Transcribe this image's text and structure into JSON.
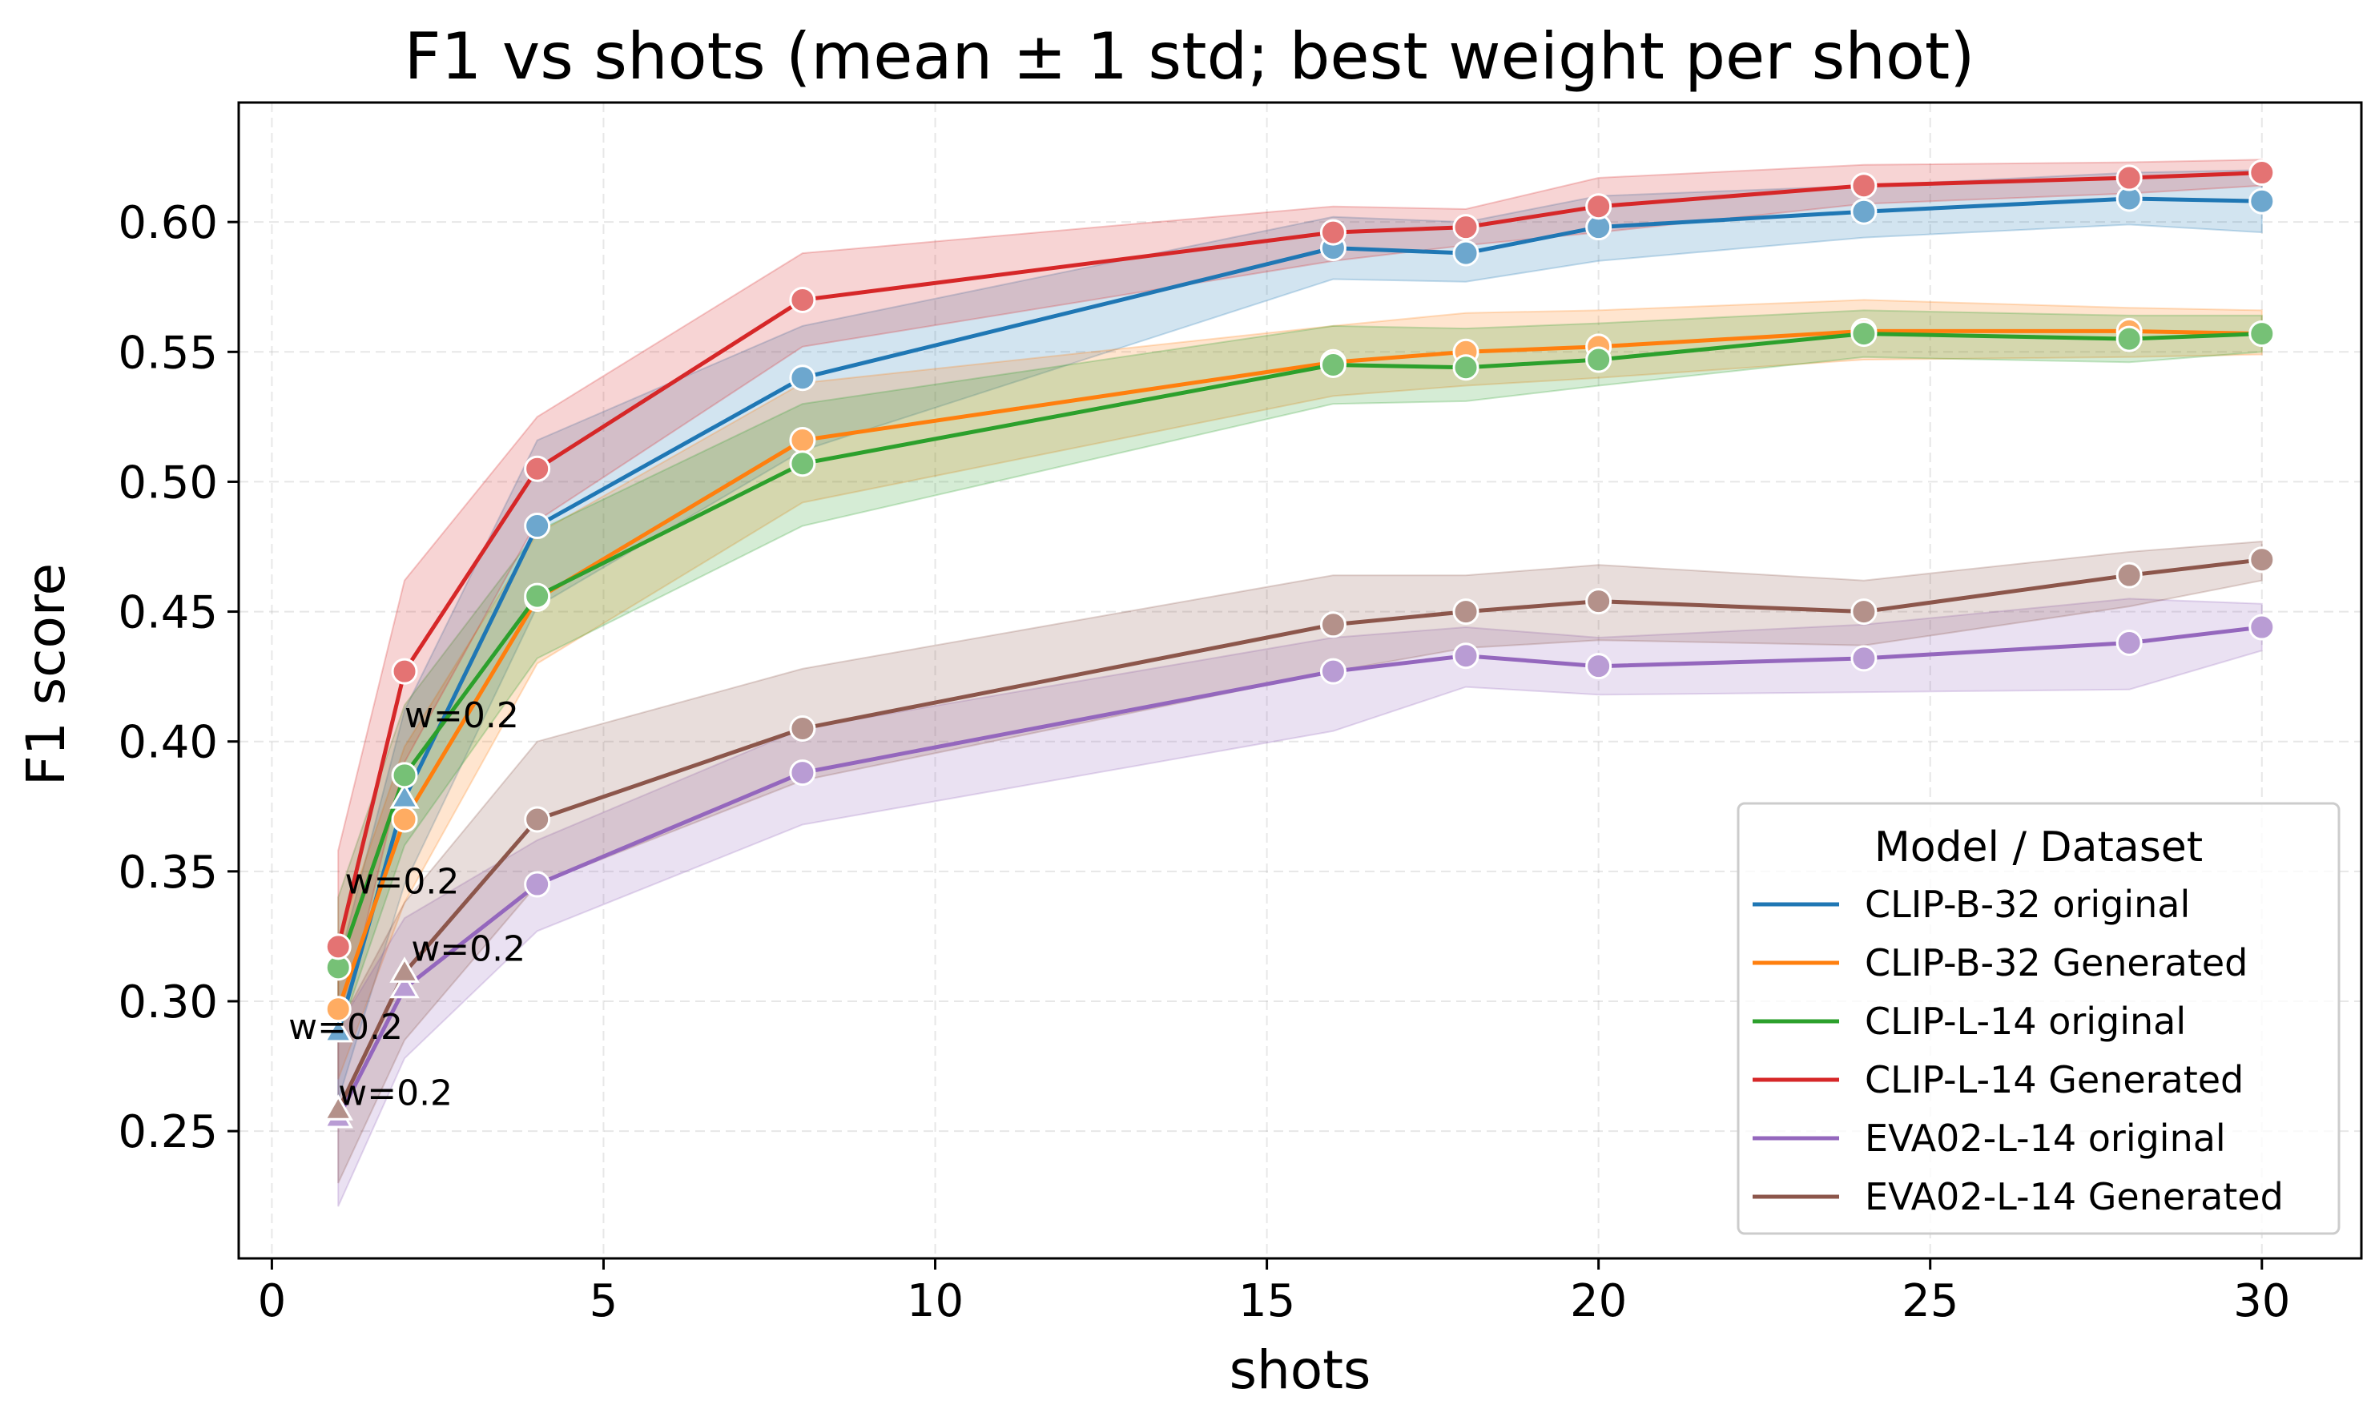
{
  "chart_data": {
    "type": "line",
    "title": "F1 vs shots (mean ± 1 std; best weight per shot)",
    "xlabel": "shots",
    "ylabel": "F1 score",
    "xlim": [
      -0.5,
      31.5
    ],
    "ylim": [
      0.201,
      0.646
    ],
    "xticks": [
      0,
      5,
      10,
      15,
      20,
      25,
      30
    ],
    "yticks": [
      0.25,
      0.3,
      0.35,
      0.4,
      0.45,
      0.5,
      0.55,
      0.6
    ],
    "ytick_labels": [
      "0.25",
      "0.30",
      "0.35",
      "0.40",
      "0.45",
      "0.50",
      "0.55",
      "0.60"
    ],
    "grid": true,
    "legend": {
      "title": "Model / Dataset",
      "placement": "center-right"
    },
    "x": [
      1,
      2,
      4,
      8,
      16,
      18,
      20,
      24,
      28,
      30
    ],
    "series": [
      {
        "name": "CLIP-B-32 original",
        "color": "#1f77b4",
        "values": [
          0.288,
          0.378,
          0.483,
          0.54,
          0.59,
          0.588,
          0.598,
          0.604,
          0.609,
          0.608
        ],
        "lower": [
          0.262,
          0.345,
          0.452,
          0.512,
          0.578,
          0.577,
          0.585,
          0.594,
          0.599,
          0.596
        ],
        "upper": [
          0.314,
          0.412,
          0.516,
          0.56,
          0.602,
          0.6,
          0.61,
          0.614,
          0.619,
          0.62
        ],
        "markers": [
          "triangle",
          "triangle",
          "circle",
          "circle",
          "circle",
          "circle",
          "circle",
          "circle",
          "circle",
          "circle"
        ]
      },
      {
        "name": "CLIP-B-32 Generated",
        "color": "#ff7f0e",
        "values": [
          0.297,
          0.37,
          0.455,
          0.516,
          0.546,
          0.55,
          0.552,
          0.558,
          0.558,
          0.557
        ],
        "lower": [
          0.27,
          0.338,
          0.43,
          0.492,
          0.533,
          0.537,
          0.54,
          0.547,
          0.548,
          0.549
        ],
        "upper": [
          0.324,
          0.398,
          0.48,
          0.538,
          0.56,
          0.565,
          0.566,
          0.57,
          0.567,
          0.566
        ],
        "markers": [
          "circle",
          "circle",
          "circle",
          "circle",
          "circle",
          "circle",
          "circle",
          "circle",
          "circle",
          "circle"
        ]
      },
      {
        "name": "CLIP-L-14 original",
        "color": "#2ca02c",
        "values": [
          0.313,
          0.387,
          0.456,
          0.507,
          0.545,
          0.544,
          0.547,
          0.557,
          0.555,
          0.557
        ],
        "lower": [
          0.286,
          0.36,
          0.432,
          0.483,
          0.53,
          0.531,
          0.537,
          0.548,
          0.546,
          0.55
        ],
        "upper": [
          0.34,
          0.414,
          0.481,
          0.53,
          0.56,
          0.559,
          0.561,
          0.566,
          0.564,
          0.564
        ],
        "markers": [
          "circle",
          "circle",
          "circle",
          "circle",
          "circle",
          "circle",
          "circle",
          "circle",
          "circle",
          "circle"
        ]
      },
      {
        "name": "CLIP-L-14 Generated",
        "color": "#d62728",
        "values": [
          0.321,
          0.427,
          0.505,
          0.57,
          0.596,
          0.598,
          0.606,
          0.614,
          0.617,
          0.619
        ],
        "lower": [
          0.285,
          0.392,
          0.485,
          0.552,
          0.585,
          0.591,
          0.596,
          0.607,
          0.611,
          0.614
        ],
        "upper": [
          0.358,
          0.462,
          0.525,
          0.588,
          0.606,
          0.605,
          0.617,
          0.622,
          0.623,
          0.624
        ],
        "markers": [
          "circle",
          "circle",
          "circle",
          "circle",
          "circle",
          "circle",
          "circle",
          "circle",
          "circle",
          "circle"
        ]
      },
      {
        "name": "EVA02-L-14 original",
        "color": "#9467bd",
        "values": [
          0.255,
          0.305,
          0.345,
          0.388,
          0.427,
          0.433,
          0.429,
          0.432,
          0.438,
          0.444
        ],
        "lower": [
          0.221,
          0.278,
          0.327,
          0.368,
          0.404,
          0.421,
          0.418,
          0.419,
          0.42,
          0.435
        ],
        "upper": [
          0.29,
          0.332,
          0.362,
          0.405,
          0.44,
          0.444,
          0.44,
          0.445,
          0.455,
          0.453
        ],
        "markers": [
          "triangle",
          "triangle",
          "circle",
          "circle",
          "circle",
          "circle",
          "circle",
          "circle",
          "circle",
          "circle"
        ]
      },
      {
        "name": "EVA02-L-14 Generated",
        "color": "#8c564b",
        "values": [
          0.258,
          0.311,
          0.37,
          0.405,
          0.445,
          0.45,
          0.454,
          0.45,
          0.464,
          0.47
        ],
        "lower": [
          0.23,
          0.285,
          0.345,
          0.385,
          0.427,
          0.436,
          0.439,
          0.437,
          0.452,
          0.462
        ],
        "upper": [
          0.29,
          0.338,
          0.4,
          0.428,
          0.464,
          0.464,
          0.468,
          0.462,
          0.473,
          0.477
        ],
        "markers": [
          "triangle",
          "triangle",
          "circle",
          "circle",
          "circle",
          "circle",
          "circle",
          "circle",
          "circle",
          "circle"
        ]
      }
    ],
    "annotations": [
      {
        "text": "w=0.2",
        "x": 2,
        "y": 0.4055,
        "color": "#1f77b4",
        "series": "CLIP-B-32 original"
      },
      {
        "text": "w=0.2",
        "x": 1.1,
        "y": 0.3415,
        "color": "#8c564b",
        "series": "EVA02-L-14 Generated"
      },
      {
        "text": "w=0.2",
        "x": 2.1,
        "y": 0.3155,
        "color": "#9467bd",
        "series": "EVA02-L-14 original"
      },
      {
        "text": "w=0.2",
        "x": 0.25,
        "y": 0.2855,
        "color": "#8c564b",
        "series": "EVA02-L-14 Generated"
      },
      {
        "text": "w=0.2",
        "x": 1.0,
        "y": 0.26,
        "color": "#9467bd",
        "series": "EVA02-L-14 original"
      }
    ]
  }
}
